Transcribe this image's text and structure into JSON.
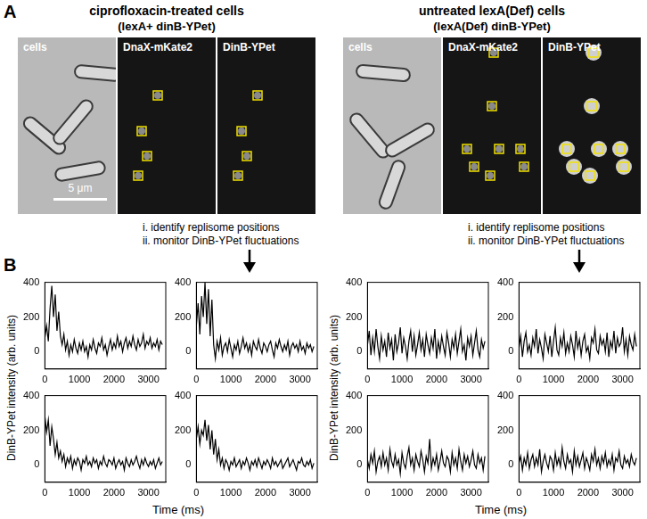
{
  "panel_a": {
    "label": "A",
    "left": {
      "title": "ciprofloxacin-treated cells",
      "subtitle": "(lexA+ dinB-YPet)",
      "images": [
        "cells",
        "DnaX-mKate2",
        "DinB-YPet"
      ],
      "scale_bar": "5 μm",
      "steps": [
        "i. identify replisome positions",
        "ii. monitor DinB-YPet fluctuations"
      ]
    },
    "right": {
      "title": "untreated lexA(Def) cells",
      "subtitle": "(lexA(Def) dinB-YPet)",
      "images": [
        "cells",
        "DnaX-mKate2",
        "DinB-YPet"
      ],
      "steps": [
        "i. identify replisome positions",
        "ii. monitor DinB-YPet fluctuations"
      ]
    }
  },
  "panel_b": {
    "label": "B",
    "y_label": "DinB-YPet intensity (arb. units)",
    "x_label": "Time (ms)"
  },
  "chart_data": [
    {
      "type": "line",
      "color": "#000000",
      "grid": false,
      "xlim": [
        0,
        3500
      ],
      "ylim": [
        -100,
        400
      ],
      "xticks": [
        0,
        1000,
        2000,
        3000
      ],
      "yticks": [
        0,
        200,
        400
      ],
      "x": [
        0,
        50,
        100,
        150,
        200,
        250,
        300,
        350,
        400,
        450,
        500,
        550,
        600,
        650,
        700,
        750,
        800,
        850,
        900,
        950,
        1000,
        1050,
        1100,
        1150,
        1200,
        1250,
        1300,
        1350,
        1400,
        1450,
        1500,
        1550,
        1600,
        1650,
        1700,
        1750,
        1800,
        1850,
        1900,
        1950,
        2000,
        2050,
        2100,
        2150,
        2200,
        2250,
        2300,
        2350,
        2400,
        2450,
        2500,
        2550,
        2600,
        2650,
        2700,
        2750,
        2800,
        2850,
        2900,
        2950,
        3000,
        3050,
        3100,
        3150,
        3200,
        3250,
        3300,
        3350,
        3400
      ],
      "values": [
        80,
        150,
        60,
        250,
        380,
        200,
        330,
        120,
        230,
        90,
        40,
        100,
        10,
        60,
        -20,
        40,
        0,
        70,
        20,
        -10,
        50,
        10,
        60,
        0,
        30,
        -30,
        40,
        10,
        70,
        20,
        -10,
        50,
        30,
        80,
        10,
        40,
        -20,
        30,
        70,
        10,
        50,
        20,
        90,
        30,
        60,
        0,
        50,
        80,
        20,
        60,
        30,
        90,
        40,
        10,
        70,
        30,
        50,
        100,
        20,
        60,
        40,
        80,
        20,
        50,
        30,
        70,
        10,
        60,
        40
      ]
    },
    {
      "type": "line",
      "color": "#000000",
      "grid": false,
      "xlim": [
        0,
        3500
      ],
      "ylim": [
        -100,
        400
      ],
      "xticks": [
        0,
        1000,
        2000,
        3000
      ],
      "yticks": [
        0,
        200,
        400
      ],
      "x": [
        0,
        50,
        100,
        150,
        200,
        250,
        300,
        350,
        400,
        450,
        500,
        550,
        600,
        650,
        700,
        750,
        800,
        850,
        900,
        950,
        1000,
        1050,
        1100,
        1150,
        1200,
        1250,
        1300,
        1350,
        1400,
        1450,
        1500,
        1550,
        1600,
        1650,
        1700,
        1750,
        1800,
        1850,
        1900,
        1950,
        2000,
        2050,
        2100,
        2150,
        2200,
        2250,
        2300,
        2350,
        2400,
        2450,
        2500,
        2550,
        2600,
        2650,
        2700,
        2750,
        2800,
        2850,
        2900,
        2950,
        3000,
        3050,
        3100,
        3150,
        3200,
        3250,
        3300,
        3350,
        3400
      ],
      "values": [
        150,
        280,
        100,
        320,
        200,
        400,
        160,
        360,
        90,
        300,
        40,
        -40,
        60,
        10,
        80,
        -20,
        30,
        50,
        0,
        70,
        20,
        -30,
        40,
        10,
        60,
        -10,
        30,
        80,
        20,
        50,
        0,
        40,
        -20,
        60,
        30,
        10,
        70,
        20,
        -10,
        50,
        30,
        0,
        40,
        60,
        10,
        -30,
        50,
        20,
        70,
        30,
        0,
        40,
        10,
        60,
        -20,
        30,
        50,
        20,
        40,
        0,
        60,
        10,
        30,
        -10,
        50,
        20,
        40,
        0,
        30
      ]
    },
    {
      "type": "line",
      "color": "#000000",
      "grid": false,
      "xlim": [
        0,
        3500
      ],
      "ylim": [
        -100,
        400
      ],
      "xticks": [
        0,
        1000,
        2000,
        3000
      ],
      "yticks": [
        0,
        200,
        400
      ],
      "x": [
        0,
        50,
        100,
        150,
        200,
        250,
        300,
        350,
        400,
        450,
        500,
        550,
        600,
        650,
        700,
        750,
        800,
        850,
        900,
        950,
        1000,
        1050,
        1100,
        1150,
        1200,
        1250,
        1300,
        1350,
        1400,
        1450,
        1500,
        1550,
        1600,
        1650,
        1700,
        1750,
        1800,
        1850,
        1900,
        1950,
        2000,
        2050,
        2100,
        2150,
        2200,
        2250,
        2300,
        2350,
        2400,
        2450,
        2500,
        2550,
        2600,
        2650,
        2700,
        2750,
        2800,
        2850,
        2900,
        2950,
        3000,
        3050,
        3100,
        3150,
        3200,
        3250,
        3300,
        3350,
        3400
      ],
      "values": [
        280,
        190,
        260,
        110,
        220,
        150,
        60,
        130,
        40,
        80,
        20,
        60,
        -10,
        40,
        10,
        50,
        -20,
        30,
        0,
        40,
        20,
        -30,
        30,
        10,
        50,
        0,
        20,
        -10,
        40,
        10,
        30,
        -20,
        20,
        0,
        50,
        10,
        -10,
        30,
        20,
        0,
        40,
        -20,
        10,
        30,
        0,
        20,
        -30,
        40,
        10,
        -10,
        30,
        0,
        20,
        50,
        10,
        -20,
        30,
        0,
        40,
        10,
        -10,
        20,
        0,
        30,
        -20,
        10,
        40,
        0,
        20
      ]
    },
    {
      "type": "line",
      "color": "#000000",
      "grid": false,
      "xlim": [
        0,
        3500
      ],
      "ylim": [
        -100,
        400
      ],
      "xticks": [
        0,
        1000,
        2000,
        3000
      ],
      "yticks": [
        0,
        200,
        400
      ],
      "x": [
        0,
        50,
        100,
        150,
        200,
        250,
        300,
        350,
        400,
        450,
        500,
        550,
        600,
        650,
        700,
        750,
        800,
        850,
        900,
        950,
        1000,
        1050,
        1100,
        1150,
        1200,
        1250,
        1300,
        1350,
        1400,
        1450,
        1500,
        1550,
        1600,
        1650,
        1700,
        1750,
        1800,
        1850,
        1900,
        1950,
        2000,
        2050,
        2100,
        2150,
        2200,
        2250,
        2300,
        2350,
        2400,
        2450,
        2500,
        2550,
        2600,
        2650,
        2700,
        2750,
        2800,
        2850,
        2900,
        2950,
        3000,
        3050,
        3100,
        3150,
        3200,
        3250,
        3300,
        3350,
        3400
      ],
      "values": [
        150,
        220,
        120,
        200,
        170,
        260,
        140,
        230,
        90,
        200,
        60,
        150,
        30,
        90,
        0,
        40,
        -20,
        30,
        10,
        -30,
        20,
        0,
        40,
        -10,
        10,
        30,
        -20,
        20,
        0,
        40,
        10,
        -30,
        20,
        0,
        30,
        -10,
        40,
        10,
        -20,
        20,
        0,
        30,
        10,
        -20,
        40,
        0,
        20,
        -10,
        10,
        30,
        -20,
        0,
        20,
        40,
        -10,
        10,
        30,
        0,
        -30,
        20,
        10,
        40,
        0,
        -10,
        20,
        0,
        30,
        -20,
        10
      ]
    },
    {
      "type": "line",
      "color": "#000000",
      "grid": false,
      "xlim": [
        0,
        3500
      ],
      "ylim": [
        -100,
        400
      ],
      "xticks": [
        0,
        1000,
        2000,
        3000
      ],
      "yticks": [
        0,
        200,
        400
      ],
      "x": [
        0,
        50,
        100,
        150,
        200,
        250,
        300,
        350,
        400,
        450,
        500,
        550,
        600,
        650,
        700,
        750,
        800,
        850,
        900,
        950,
        1000,
        1050,
        1100,
        1150,
        1200,
        1250,
        1300,
        1350,
        1400,
        1450,
        1500,
        1550,
        1600,
        1650,
        1700,
        1750,
        1800,
        1850,
        1900,
        1950,
        2000,
        2050,
        2100,
        2150,
        2200,
        2250,
        2300,
        2350,
        2400,
        2450,
        2500,
        2550,
        2600,
        2650,
        2700,
        2750,
        2800,
        2850,
        2900,
        2950,
        3000,
        3050,
        3100,
        3150,
        3200,
        3250,
        3300,
        3350,
        3400
      ],
      "values": [
        40,
        120,
        -20,
        80,
        0,
        130,
        30,
        -40,
        90,
        10,
        60,
        -30,
        110,
        20,
        70,
        -50,
        100,
        0,
        50,
        140,
        -10,
        80,
        30,
        -40,
        60,
        120,
        0,
        90,
        -20,
        40,
        110,
        10,
        70,
        -30,
        100,
        40,
        -10,
        80,
        20,
        130,
        -40,
        60,
        0,
        90,
        30,
        -20,
        110,
        50,
        -30,
        70,
        20,
        100,
        -10,
        60,
        130,
        0,
        40,
        -50,
        80,
        30,
        90,
        -20,
        50,
        120,
        10,
        -30,
        70,
        20,
        60
      ]
    },
    {
      "type": "line",
      "color": "#000000",
      "grid": false,
      "xlim": [
        0,
        3500
      ],
      "ylim": [
        -100,
        400
      ],
      "xticks": [
        0,
        1000,
        2000,
        3000
      ],
      "yticks": [
        0,
        200,
        400
      ],
      "x": [
        0,
        50,
        100,
        150,
        200,
        250,
        300,
        350,
        400,
        450,
        500,
        550,
        600,
        650,
        700,
        750,
        800,
        850,
        900,
        950,
        1000,
        1050,
        1100,
        1150,
        1200,
        1250,
        1300,
        1350,
        1400,
        1450,
        1500,
        1550,
        1600,
        1650,
        1700,
        1750,
        1800,
        1850,
        1900,
        1950,
        2000,
        2050,
        2100,
        2150,
        2200,
        2250,
        2300,
        2350,
        2400,
        2450,
        2500,
        2550,
        2600,
        2650,
        2700,
        2750,
        2800,
        2850,
        2900,
        2950,
        3000,
        3050,
        3100,
        3150,
        3200,
        3250,
        3300,
        3350,
        3400
      ],
      "values": [
        20,
        90,
        -30,
        60,
        110,
        0,
        40,
        -20,
        80,
        30,
        130,
        -10,
        70,
        20,
        -40,
        100,
        50,
        0,
        90,
        -30,
        60,
        140,
        10,
        -20,
        80,
        30,
        110,
        -10,
        50,
        0,
        90,
        40,
        -30,
        120,
        20,
        70,
        -20,
        60,
        100,
        0,
        30,
        -40,
        80,
        50,
        130,
        10,
        -10,
        90,
        40,
        70,
        0,
        110,
        -30,
        60,
        20,
        120,
        -10,
        80,
        30,
        50,
        140,
        0,
        70,
        -20,
        90,
        40,
        10,
        100,
        30
      ]
    },
    {
      "type": "line",
      "color": "#000000",
      "grid": false,
      "xlim": [
        0,
        3500
      ],
      "ylim": [
        -100,
        400
      ],
      "xticks": [
        0,
        1000,
        2000,
        3000
      ],
      "yticks": [
        0,
        200,
        400
      ],
      "x": [
        0,
        50,
        100,
        150,
        200,
        250,
        300,
        350,
        400,
        450,
        500,
        550,
        600,
        650,
        700,
        750,
        800,
        850,
        900,
        950,
        1000,
        1050,
        1100,
        1150,
        1200,
        1250,
        1300,
        1350,
        1400,
        1450,
        1500,
        1550,
        1600,
        1650,
        1700,
        1750,
        1800,
        1850,
        1900,
        1950,
        2000,
        2050,
        2100,
        2150,
        2200,
        2250,
        2300,
        2350,
        2400,
        2450,
        2500,
        2550,
        2600,
        2650,
        2700,
        2750,
        2800,
        2850,
        2900,
        2950,
        3000,
        3050,
        3100,
        3150,
        3200,
        3250,
        3300,
        3350,
        3400
      ],
      "values": [
        30,
        -20,
        60,
        10,
        80,
        -40,
        20,
        50,
        -10,
        70,
        0,
        40,
        -30,
        90,
        20,
        -10,
        60,
        0,
        30,
        -50,
        70,
        10,
        -20,
        50,
        100,
        0,
        40,
        -30,
        60,
        20,
        -10,
        80,
        30,
        -40,
        50,
        10,
        150,
        -20,
        40,
        0,
        60,
        -30,
        20,
        80,
        10,
        -10,
        50,
        30,
        -40,
        70,
        0,
        40,
        -20,
        90,
        20,
        -30,
        60,
        10,
        50,
        -10,
        30,
        80,
        0,
        -20,
        60,
        10,
        40,
        -30,
        50
      ]
    },
    {
      "type": "line",
      "color": "#000000",
      "grid": false,
      "xlim": [
        0,
        3500
      ],
      "ylim": [
        -100,
        400
      ],
      "xticks": [
        0,
        1000,
        2000,
        3000
      ],
      "yticks": [
        0,
        200,
        400
      ],
      "x": [
        0,
        50,
        100,
        150,
        200,
        250,
        300,
        350,
        400,
        450,
        500,
        550,
        600,
        650,
        700,
        750,
        800,
        850,
        900,
        950,
        1000,
        1050,
        1100,
        1150,
        1200,
        1250,
        1300,
        1350,
        1400,
        1450,
        1500,
        1550,
        1600,
        1650,
        1700,
        1750,
        1800,
        1850,
        1900,
        1950,
        2000,
        2050,
        2100,
        2150,
        2200,
        2250,
        2300,
        2350,
        2400,
        2450,
        2500,
        2550,
        2600,
        2650,
        2700,
        2750,
        2800,
        2850,
        2900,
        2950,
        3000,
        3050,
        3100,
        3150,
        3200,
        3250,
        3300,
        3350,
        3400
      ],
      "values": [
        10,
        50,
        -30,
        40,
        0,
        70,
        -20,
        30,
        60,
        -10,
        40,
        0,
        90,
        -40,
        20,
        60,
        10,
        -20,
        50,
        30,
        -30,
        70,
        0,
        40,
        -10,
        100,
        20,
        -20,
        60,
        10,
        30,
        -40,
        80,
        0,
        50,
        -10,
        30,
        70,
        -20,
        40,
        10,
        -30,
        60,
        20,
        90,
        0,
        40,
        -20,
        50,
        10,
        70,
        -10,
        30,
        0,
        60,
        -30,
        40,
        20,
        80,
        0,
        -20,
        50,
        10,
        30,
        -10,
        60,
        20,
        0,
        40
      ]
    }
  ]
}
